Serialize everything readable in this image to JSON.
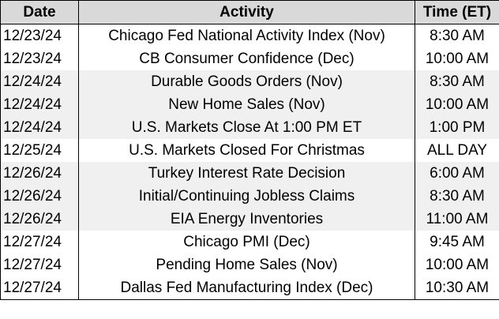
{
  "table": {
    "header": [
      "Date",
      "Activity",
      "Time (ET)"
    ],
    "rows": [
      [
        "12/23/24",
        "Chicago Fed National Activity Index (Nov)",
        "8:30 AM"
      ],
      [
        "12/23/24",
        "CB Consumer Confidence (Dec)",
        "10:00 AM"
      ],
      [
        "12/24/24",
        "Durable Goods Orders (Nov)",
        "8:30 AM"
      ],
      [
        "12/24/24",
        "New Home Sales (Nov)",
        "10:00 AM"
      ],
      [
        "12/24/24",
        "U.S. Markets Close At 1:00 PM ET",
        "1:00 PM"
      ],
      [
        "12/25/24",
        "U.S. Markets Closed For Christmas",
        "ALL DAY"
      ],
      [
        "12/26/24",
        "Turkey Interest Rate Decision",
        "6:00 AM"
      ],
      [
        "12/26/24",
        "Initial/Continuing Jobless Claims",
        "8:30 AM"
      ],
      [
        "12/26/24",
        "EIA Energy Inventories",
        "11:00 AM"
      ],
      [
        "12/27/24",
        "Chicago PMI (Dec)",
        "9:45 AM"
      ],
      [
        "12/27/24",
        "Pending Home Sales (Nov)",
        "10:00 AM"
      ],
      [
        "12/27/24",
        "Dallas Fed Manufacturing Index (Dec)",
        "10:30 AM"
      ]
    ]
  }
}
